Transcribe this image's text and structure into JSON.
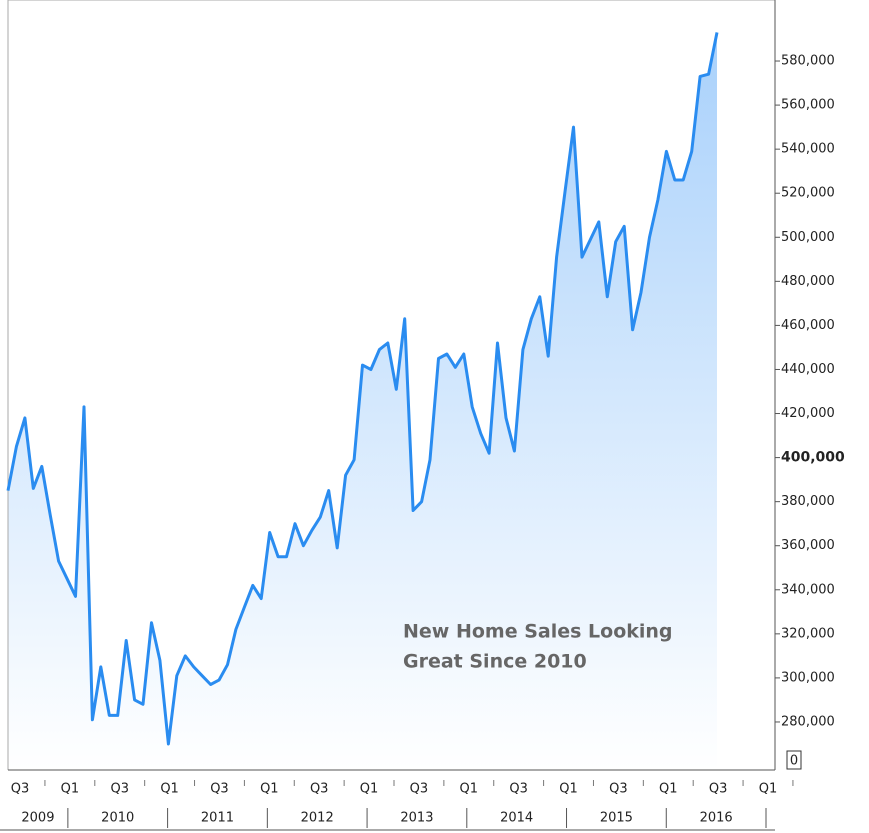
{
  "chart_data": {
    "type": "line",
    "annotation": [
      "New Home Sales Looking",
      "Great Since 2010"
    ],
    "axis_break_label": "0",
    "quarter_labels": [
      "Q3",
      "Q1",
      "Q3",
      "Q1",
      "Q3",
      "Q1",
      "Q3",
      "Q1",
      "Q3",
      "Q1",
      "Q3",
      "Q1",
      "Q3",
      "Q1",
      "Q3",
      "Q1"
    ],
    "year_labels": [
      "2009",
      "2010",
      "2011",
      "2012",
      "2013",
      "2014",
      "2015",
      "2016"
    ],
    "series": [
      {
        "color": "#2a8cf0",
        "values": [
          385000,
          405000,
          418000,
          386000,
          396000,
          374000,
          353000,
          345000,
          337000,
          423000,
          281000,
          305000,
          283000,
          283000,
          317000,
          290000,
          288000,
          325000,
          308000,
          270000,
          301000,
          310000,
          305000,
          301000,
          297000,
          299000,
          306000,
          322000,
          332000,
          342000,
          336000,
          366000,
          355000,
          355000,
          370000,
          360000,
          367000,
          373000,
          385000,
          359000,
          392000,
          399000,
          442000,
          440000,
          449000,
          452000,
          431000,
          463000,
          376000,
          380000,
          399000,
          445000,
          447000,
          441000,
          447000,
          423000,
          411000,
          402000,
          452000,
          418000,
          403000,
          449000,
          463000,
          473000,
          446000,
          491000,
          521000,
          550000,
          491000,
          499000,
          507000,
          473000,
          498000,
          505000,
          458000,
          475000,
          500000,
          517000,
          539000,
          526000,
          526000,
          539000,
          573000,
          574000,
          593000
        ]
      }
    ],
    "ylim": [
      258200,
      607700
    ],
    "yticks": [
      {
        "value": 280000,
        "label": "280,000"
      },
      {
        "value": 300000,
        "label": "300,000"
      },
      {
        "value": 320000,
        "label": "320,000"
      },
      {
        "value": 340000,
        "label": "340,000"
      },
      {
        "value": 360000,
        "label": "360,000"
      },
      {
        "value": 380000,
        "label": "380,000"
      },
      {
        "value": 400000,
        "label": "400,000"
      },
      {
        "value": 420000,
        "label": "420,000"
      },
      {
        "value": 440000,
        "label": "440,000"
      },
      {
        "value": 460000,
        "label": "460,000"
      },
      {
        "value": 480000,
        "label": "480,000"
      },
      {
        "value": 500000,
        "label": "500,000"
      },
      {
        "value": 520000,
        "label": "520,000"
      },
      {
        "value": 540000,
        "label": "540,000"
      },
      {
        "value": 560000,
        "label": "560,000"
      },
      {
        "value": 580000,
        "label": "580,000"
      }
    ],
    "highlight_tick": 400000,
    "grid": false
  }
}
